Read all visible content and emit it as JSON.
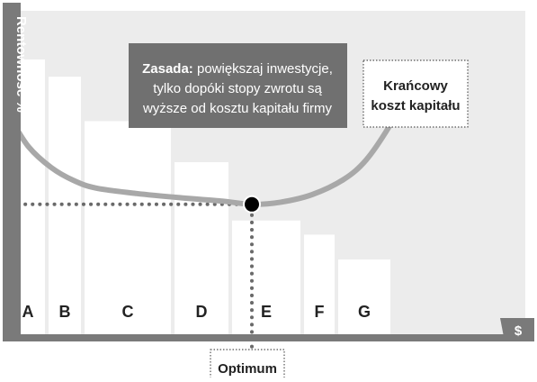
{
  "chart_data": {
    "type": "bar",
    "title": "",
    "ylabel": "Rentowność %",
    "xlabel": "$",
    "categories": [
      "A",
      "B",
      "C",
      "D",
      "E",
      "F",
      "G"
    ],
    "widths": [
      40,
      40,
      100,
      64,
      80,
      38,
      62
    ],
    "values": [
      25.5,
      23.9,
      19.8,
      16.0,
      10.6,
      9.3,
      7.0
    ],
    "ylim": [
      0,
      30
    ],
    "xlim": [
      0,
      584
    ],
    "curve": {
      "name": "Krańcowy koszt kapitału",
      "points": [
        [
          0,
          20.0
        ],
        [
          20,
          17.4
        ],
        [
          45,
          15.5
        ],
        [
          70,
          14.3
        ],
        [
          95,
          13.6
        ],
        [
          140,
          13.1
        ],
        [
          190,
          12.7
        ],
        [
          235,
          12.4
        ],
        [
          268,
          12.1
        ],
        [
          300,
          12.3
        ],
        [
          335,
          13.0
        ],
        [
          370,
          14.4
        ],
        [
          395,
          16.2
        ],
        [
          420,
          19.2
        ],
        [
          440,
          22.3
        ],
        [
          452,
          24.3
        ]
      ]
    },
    "optimum": {
      "x": 268,
      "y": 12.1
    },
    "grid": false,
    "annotations": {
      "rule_bold": "Zasada:",
      "rule_line1_rest": " powiększaj inwestycje,",
      "rule_line2": "tylko dopóki stopy zwrotu są",
      "rule_line3": "wyższe od kosztu kapitału firmy",
      "curve_label_line1": "Krańcowy",
      "curve_label_line2": "koszt kapitału",
      "optimum_label": "Optimum"
    },
    "colors": {
      "plot_bg": "#ececec",
      "bars": "#ffffff",
      "curve": "#a8a8a8",
      "axis": "#7a7a7a",
      "callout": "#707070",
      "dots": "#6a6a6a",
      "marker": "#000000"
    }
  }
}
